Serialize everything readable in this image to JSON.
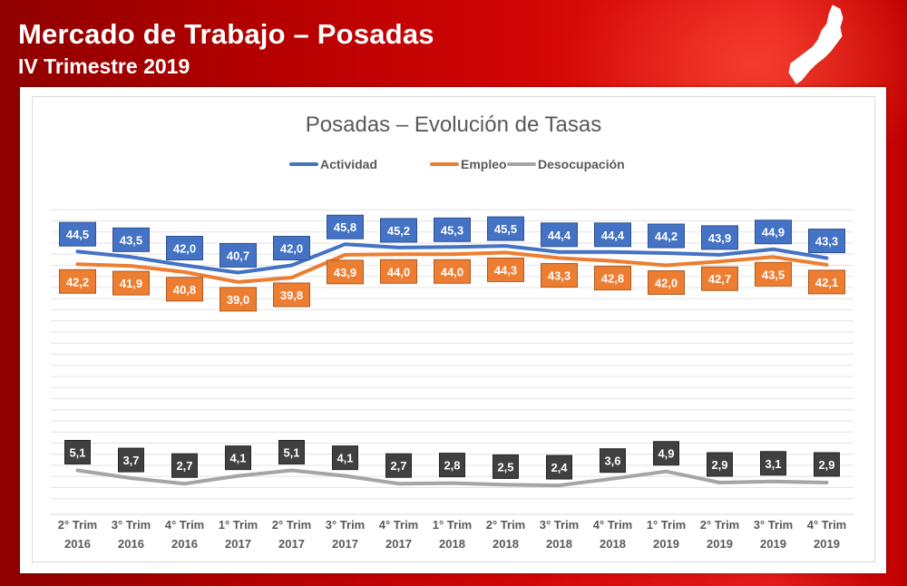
{
  "header": {
    "title": "Mercado de Trabajo – Posadas",
    "subtitle": "IV Trimestre 2019"
  },
  "colors": {
    "actividad": "#4472c4",
    "empleo": "#ed7d31",
    "desocupacion": "#a5a5a5",
    "desocupacion_label_bg": "#404040",
    "background_red": "#c00000"
  },
  "chart_data": {
    "type": "line",
    "title": "Posadas – Evolución de Tasas",
    "categories": [
      [
        "2° Trim",
        "2016"
      ],
      [
        "3° Trim",
        "2016"
      ],
      [
        "4° Trim",
        "2016"
      ],
      [
        "1° Trim",
        "2017"
      ],
      [
        "2° Trim",
        "2017"
      ],
      [
        "3° Trim",
        "2017"
      ],
      [
        "4° Trim",
        "2017"
      ],
      [
        "1° Trim",
        "2018"
      ],
      [
        "2° Trim",
        "2018"
      ],
      [
        "3° Trim",
        "2018"
      ],
      [
        "4° Trim",
        "2018"
      ],
      [
        "1° Trim",
        "2019"
      ],
      [
        "2° Trim",
        "2019"
      ],
      [
        "3° Trim",
        "2019"
      ],
      [
        "4° Trim",
        "2019"
      ]
    ],
    "series": [
      {
        "name": "Actividad",
        "values": [
          44.5,
          43.5,
          42.0,
          40.7,
          42.0,
          45.8,
          45.2,
          45.3,
          45.5,
          44.4,
          44.4,
          44.2,
          43.9,
          44.9,
          43.3
        ],
        "labels": [
          "44,5",
          "43,5",
          "42,0",
          "40,7",
          "42,0",
          "45,8",
          "45,2",
          "45,3",
          "45,5",
          "44,4",
          "44,4",
          "44,2",
          "43,9",
          "44,9",
          "43,3"
        ]
      },
      {
        "name": "Empleo",
        "values": [
          42.2,
          41.9,
          40.8,
          39.0,
          39.8,
          43.9,
          44.0,
          44.0,
          44.3,
          43.3,
          42.8,
          42.0,
          42.7,
          43.5,
          42.1
        ],
        "labels": [
          "42,2",
          "41,9",
          "40,8",
          "39,0",
          "39,8",
          "43,9",
          "44,0",
          "44,0",
          "44,3",
          "43,3",
          "42,8",
          "42,0",
          "42,7",
          "43,5",
          "42,1"
        ]
      },
      {
        "name": "Desocupación",
        "values": [
          5.1,
          3.7,
          2.7,
          4.1,
          5.1,
          4.1,
          2.7,
          2.8,
          2.5,
          2.4,
          3.6,
          4.9,
          2.9,
          3.1,
          2.9
        ],
        "labels": [
          "5,1",
          "3,7",
          "2,7",
          "4,1",
          "5,1",
          "4,1",
          "2,7",
          "2,8",
          "2,5",
          "2,4",
          "3,6",
          "4,9",
          "2,9",
          "3,1",
          "2,9"
        ]
      }
    ],
    "ylim": [
      -2,
      54
    ],
    "grid": true,
    "legend_position": "top-center",
    "xlabel": "",
    "ylabel": ""
  }
}
